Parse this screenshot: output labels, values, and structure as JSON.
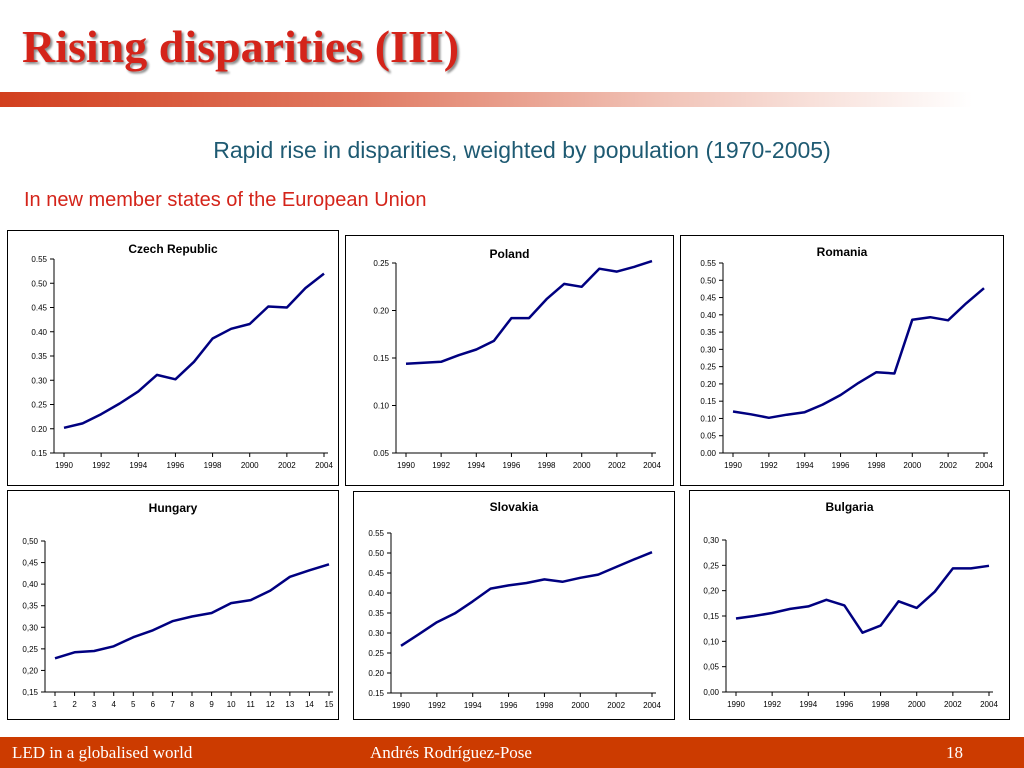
{
  "slide": {
    "title": "Rising disparities (III)",
    "subtitle": "Rapid rise in disparities, weighted by population (1970-2005)",
    "section_label": "In new member states of the European Union",
    "footer_left": "LED in a globalised world",
    "footer_center": "Andrés Rodríguez-Pose",
    "page_number": "18"
  },
  "colors": {
    "title": "#d4241a",
    "subtitle": "#1e5a72",
    "series_line": "#000080",
    "footer_bg": "#cc3b00"
  },
  "chart_data": [
    {
      "type": "line",
      "title": "Czech Republic",
      "x": [
        1990,
        1991,
        1992,
        1993,
        1994,
        1995,
        1996,
        1997,
        1998,
        1999,
        2000,
        2001,
        2002,
        2003,
        2004
      ],
      "xticks": [
        "1990",
        "1992",
        "1994",
        "1996",
        "1998",
        "2000",
        "2002",
        "2004"
      ],
      "ylim": [
        0.15,
        0.55
      ],
      "yticks": [
        "0.15",
        "0.20",
        "0.25",
        "0.30",
        "0.35",
        "0.40",
        "0.45",
        "0.50",
        "0.55"
      ],
      "values": [
        0.202,
        0.211,
        0.23,
        0.252,
        0.277,
        0.311,
        0.302,
        0.338,
        0.386,
        0.406,
        0.416,
        0.452,
        0.45,
        0.49,
        0.52
      ],
      "grid": false,
      "legend": false
    },
    {
      "type": "line",
      "title": "Poland",
      "x": [
        1990,
        1991,
        1992,
        1993,
        1994,
        1995,
        1996,
        1997,
        1998,
        1999,
        2000,
        2001,
        2002,
        2003,
        2004
      ],
      "xticks": [
        "1990",
        "1992",
        "1994",
        "1996",
        "1998",
        "2000",
        "2002",
        "2004"
      ],
      "ylim": [
        0.05,
        0.25
      ],
      "yticks": [
        "0.05",
        "0.10",
        "0.15",
        "0.20",
        "0.25"
      ],
      "values": [
        0.144,
        0.145,
        0.146,
        0.153,
        0.159,
        0.168,
        0.192,
        0.192,
        0.212,
        0.228,
        0.225,
        0.244,
        0.241,
        0.246,
        0.252
      ],
      "grid": false,
      "legend": false
    },
    {
      "type": "line",
      "title": "Romania",
      "x": [
        1990,
        1991,
        1992,
        1993,
        1994,
        1995,
        1996,
        1997,
        1998,
        1999,
        2000,
        2001,
        2002,
        2003,
        2004
      ],
      "xticks": [
        "1990",
        "1992",
        "1994",
        "1996",
        "1998",
        "2000",
        "2002",
        "2004"
      ],
      "ylim": [
        0.0,
        0.55
      ],
      "yticks": [
        "0.00",
        "0.05",
        "0.10",
        "0.15",
        "0.20",
        "0.25",
        "0.30",
        "0.35",
        "0.40",
        "0.45",
        "0.50",
        "0.55"
      ],
      "values": [
        0.12,
        0.112,
        0.102,
        0.111,
        0.118,
        0.14,
        0.168,
        0.203,
        0.234,
        0.23,
        0.386,
        0.393,
        0.384,
        0.433,
        0.477
      ],
      "grid": false,
      "legend": false
    },
    {
      "type": "line",
      "title": "Hungary",
      "x": [
        1,
        2,
        3,
        4,
        5,
        6,
        7,
        8,
        9,
        10,
        11,
        12,
        13,
        14,
        15
      ],
      "xticks": [
        "1",
        "2",
        "3",
        "4",
        "5",
        "6",
        "7",
        "8",
        "9",
        "10",
        "11",
        "12",
        "13",
        "14",
        "15"
      ],
      "ylim": [
        0.15,
        0.5
      ],
      "yticks": [
        "0,15",
        "0,20",
        "0,25",
        "0,30",
        "0,35",
        "0,40",
        "0,45",
        "0,50"
      ],
      "values": [
        0.228,
        0.242,
        0.245,
        0.256,
        0.277,
        0.293,
        0.314,
        0.325,
        0.333,
        0.356,
        0.363,
        0.385,
        0.417,
        0.432,
        0.446
      ],
      "grid": false,
      "legend": false
    },
    {
      "type": "line",
      "title": "Slovakia",
      "x": [
        1990,
        1991,
        1992,
        1993,
        1994,
        1995,
        1996,
        1997,
        1998,
        1999,
        2000,
        2001,
        2002,
        2003,
        2004
      ],
      "xticks": [
        "1990",
        "1992",
        "1994",
        "1996",
        "1998",
        "2000",
        "2002",
        "2004"
      ],
      "ylim": [
        0.15,
        0.55
      ],
      "yticks": [
        "0.15",
        "0.20",
        "0.25",
        "0.30",
        "0.35",
        "0.40",
        "0.45",
        "0.50",
        "0.55"
      ],
      "values": [
        0.268,
        0.297,
        0.327,
        0.349,
        0.379,
        0.411,
        0.419,
        0.425,
        0.434,
        0.428,
        0.438,
        0.446,
        0.465,
        0.484,
        0.502
      ],
      "grid": false,
      "legend": false
    },
    {
      "type": "line",
      "title": "Bulgaria",
      "x": [
        1990,
        1991,
        1992,
        1993,
        1994,
        1995,
        1996,
        1997,
        1998,
        1999,
        2000,
        2001,
        2002,
        2003,
        2004
      ],
      "xticks": [
        "1990",
        "1992",
        "1994",
        "1996",
        "1998",
        "2000",
        "2002",
        "2004"
      ],
      "ylim": [
        0.0,
        0.3
      ],
      "yticks": [
        "0,00",
        "0,05",
        "0,10",
        "0,15",
        "0,20",
        "0,25",
        "0,30"
      ],
      "values": [
        0.145,
        0.15,
        0.156,
        0.164,
        0.169,
        0.182,
        0.171,
        0.117,
        0.131,
        0.179,
        0.166,
        0.198,
        0.244,
        0.244,
        0.249
      ],
      "grid": false,
      "legend": false
    }
  ]
}
